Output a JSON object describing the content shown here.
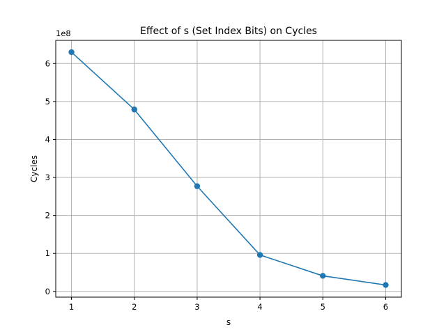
{
  "chart_data": {
    "type": "line",
    "title": "Effect of s (Set Index Bits) on Cycles",
    "xlabel": "s",
    "ylabel": "Cycles",
    "y_offset_label": "1e8",
    "x": [
      1,
      2,
      3,
      4,
      5,
      6
    ],
    "series": [
      {
        "values": [
          630000000,
          479000000,
          277000000,
          96000000,
          41000000,
          17000000
        ],
        "color": "#1f77b4",
        "marker": "circle"
      }
    ],
    "xlim": [
      0.75,
      6.25
    ],
    "ylim": [
      -15000000,
      661000000
    ],
    "xticks": [
      1,
      2,
      3,
      4,
      5,
      6
    ],
    "yticks": [
      0,
      100000000,
      200000000,
      300000000,
      400000000,
      500000000,
      600000000
    ],
    "ytick_labels": [
      "0",
      "1",
      "2",
      "3",
      "4",
      "5",
      "6"
    ],
    "grid": true
  }
}
